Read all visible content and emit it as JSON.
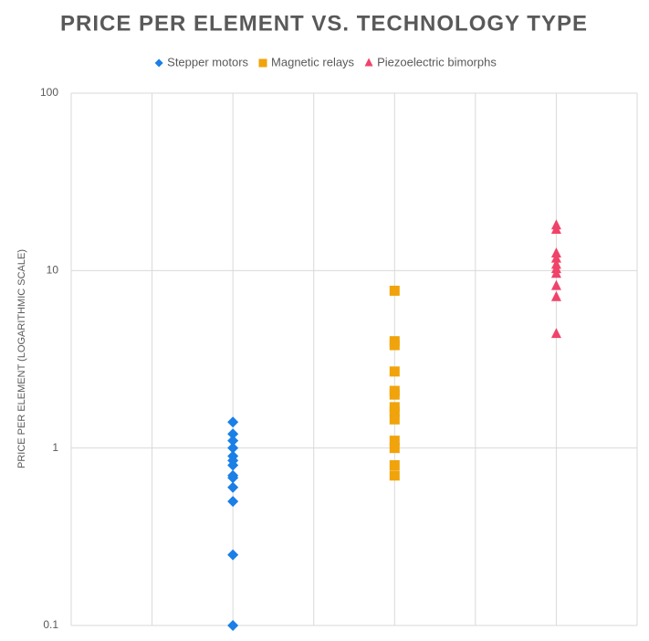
{
  "chart_data": {
    "type": "scatter",
    "title": "PRICE PER ELEMENT VS. TECHNOLOGY TYPE",
    "y_label": "PRICE PER ELEMENT (LOGARITHMIC SCALE)",
    "y_scale": "log",
    "grid": true,
    "xlim": [
      0,
      7
    ],
    "xticks": [
      0,
      1,
      2,
      3,
      4,
      5,
      6,
      7
    ],
    "ylim": [
      0.1,
      100
    ],
    "yticks": [
      0.1,
      1,
      10,
      100
    ],
    "legend": "top",
    "series": [
      {
        "name": "Stepper motors",
        "color": "#1a7fe6",
        "marker": "diamond",
        "x": [
          2,
          2,
          2,
          2,
          2,
          2,
          2,
          2,
          2,
          2,
          2,
          2,
          2
        ],
        "values": [
          1.4,
          1.2,
          1.1,
          1.0,
          0.9,
          0.85,
          0.8,
          0.7,
          0.68,
          0.6,
          0.5,
          0.25,
          0.1
        ]
      },
      {
        "name": "Magnetic relays",
        "color": "#f0a30a",
        "marker": "square",
        "x": [
          4,
          4,
          4,
          4,
          4,
          4,
          4,
          4,
          4,
          4,
          4,
          4,
          4
        ],
        "values": [
          7.7,
          4.0,
          3.8,
          2.7,
          2.1,
          2.0,
          1.7,
          1.6,
          1.45,
          1.1,
          1.0,
          0.8,
          0.7
        ]
      },
      {
        "name": "Piezoelectric bimorphs",
        "color": "#f0436a",
        "marker": "triangle",
        "x": [
          6,
          6,
          6,
          6,
          6,
          6,
          6,
          6,
          6,
          6
        ],
        "values": [
          18,
          17,
          12.5,
          11.7,
          10.8,
          10.2,
          9.6,
          8.2,
          7.1,
          4.4
        ]
      }
    ]
  }
}
